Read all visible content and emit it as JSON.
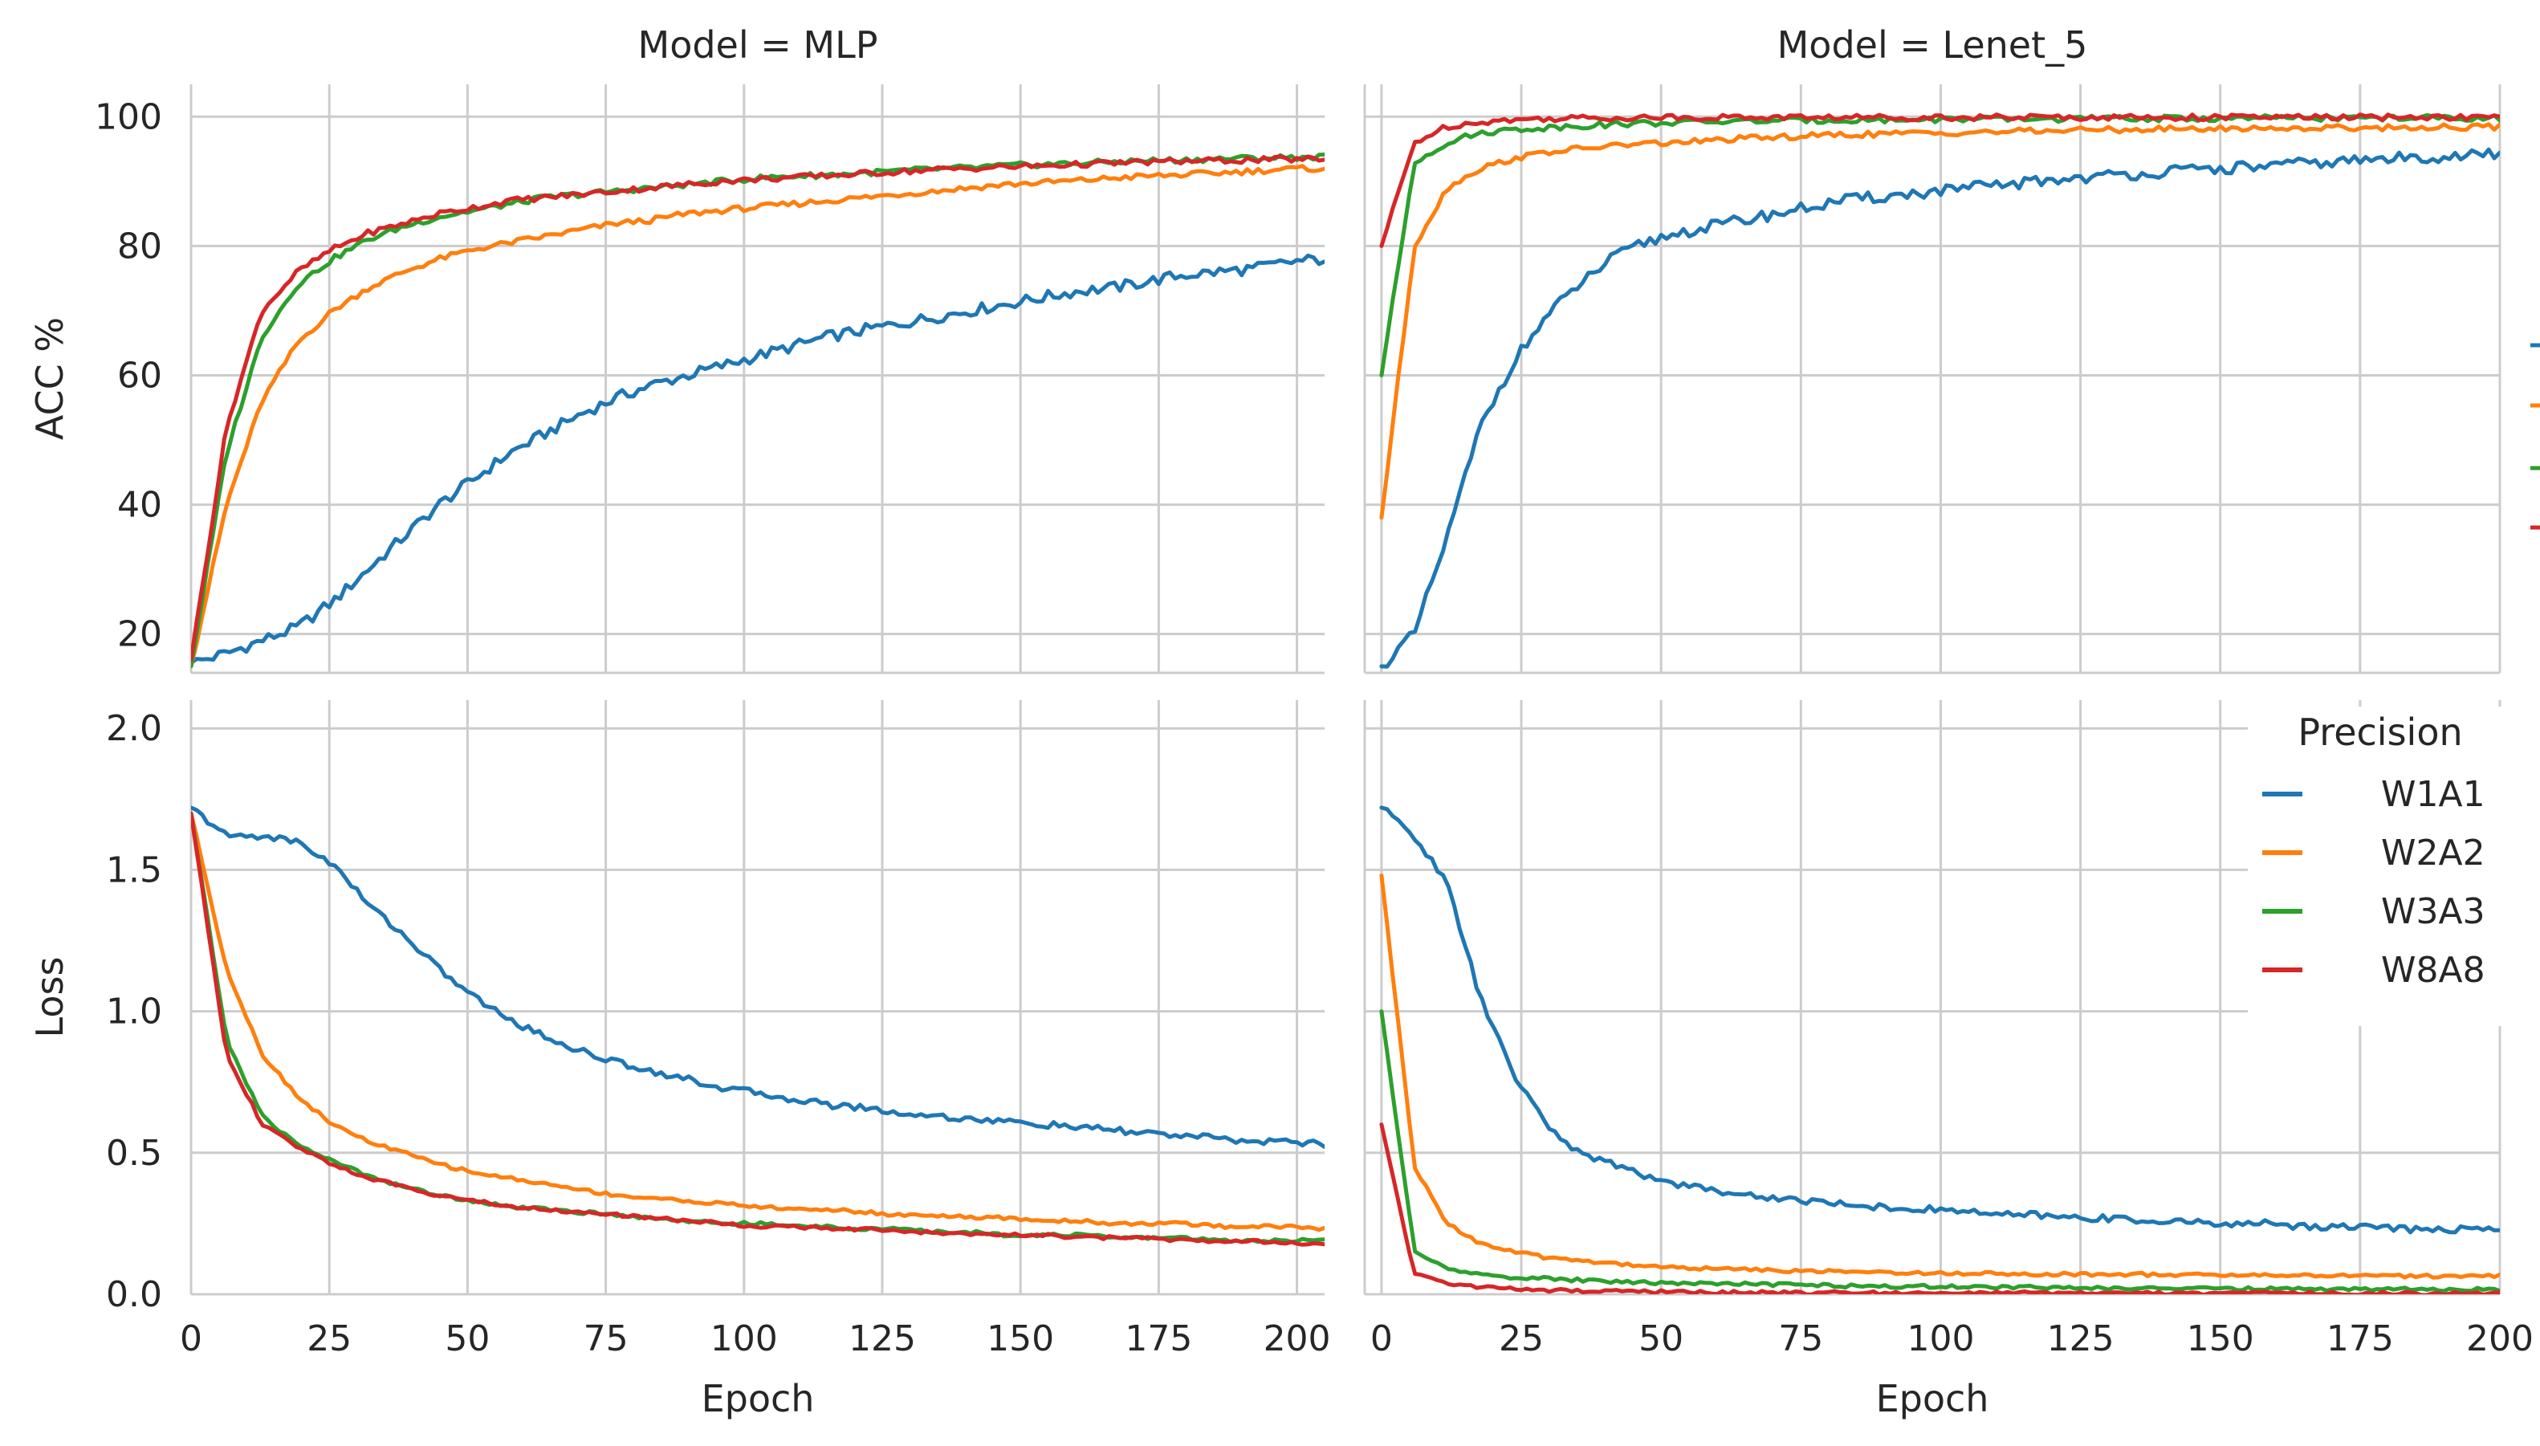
{
  "chart_data": {
    "type": "line",
    "legend_title": "Precision",
    "legend_placement": "bottom-right panel, top-right",
    "colors": {
      "W1A1": "#1f77b4",
      "W2A2": "#ff7f0e",
      "W3A3": "#2ca02c",
      "W8A8": "#d62728"
    },
    "series_names": [
      "W1A1",
      "W2A2",
      "W3A3",
      "W8A8"
    ],
    "columns": [
      {
        "title": "Model = MLP",
        "xlabel": "Epoch",
        "xlim": [
          0,
          205
        ],
        "xticks": [
          0,
          25,
          50,
          75,
          100,
          125,
          150,
          175,
          200
        ],
        "epochs": 205
      },
      {
        "title": "Model = Lenet_5",
        "xlabel": "Epoch",
        "xlim": [
          -3,
          200
        ],
        "xticks": [
          0,
          25,
          50,
          75,
          100,
          125,
          150,
          175,
          200
        ],
        "epochs": 200
      }
    ],
    "rows": [
      {
        "ylabel": "ACC %",
        "ylim": [
          14,
          105
        ],
        "yticks": [
          20,
          40,
          60,
          80,
          100
        ]
      },
      {
        "ylabel": "Loss",
        "ylim": [
          0,
          2.1
        ],
        "yticks": [
          0.0,
          0.5,
          1.0,
          1.5,
          2.0
        ]
      }
    ],
    "panels": [
      {
        "model": "MLP",
        "metric": "ACC %",
        "series": [
          {
            "name": "W1A1",
            "values": [
              15.5,
              17,
              19,
              21,
              25,
              30,
              35,
              40,
              44,
              48,
              51,
              54,
              56.5,
              58.5,
              60,
              61.5,
              63,
              64.5,
              66,
              67,
              68,
              69,
              70,
              71,
              72,
              73,
              73.5,
              74.5,
              75.5,
              76,
              76.5,
              77.5,
              78
            ]
          },
          {
            "name": "W2A2",
            "values": [
              15,
              40,
              56,
              65,
              70,
              73.5,
              76,
              78,
              79.5,
              80.5,
              81.5,
              82.5,
              83.5,
              84,
              85,
              85.5,
              86,
              86.5,
              87,
              87.5,
              88,
              88.5,
              89,
              89.5,
              89.8,
              90.1,
              90.5,
              90.8,
              91,
              91.3,
              91.6,
              91.9,
              92
            ]
          },
          {
            "name": "W3A3",
            "values": [
              15,
              48,
              66,
              74,
              78,
              81,
              83,
              84.5,
              85.5,
              86.5,
              87.5,
              88,
              88.5,
              89,
              89.5,
              90,
              90.5,
              90.8,
              91,
              91.3,
              91.6,
              91.9,
              92.1,
              92.4,
              92.6,
              92.8,
              93,
              93.2,
              93.3,
              93.5,
              93.6,
              93.7,
              93.8
            ]
          },
          {
            "name": "W8A8",
            "values": [
              16,
              52,
              70,
              76,
              79.5,
              82,
              83.5,
              85,
              86,
              87,
              87.5,
              88,
              88.5,
              89,
              89.5,
              90,
              90.3,
              90.6,
              90.9,
              91.2,
              91.5,
              91.8,
              92,
              92.2,
              92.4,
              92.6,
              92.8,
              93,
              93.1,
              93.2,
              93.3,
              93.4,
              93.5
            ]
          }
        ]
      },
      {
        "model": "Lenet_5",
        "metric": "ACC %",
        "series": [
          {
            "name": "W1A1",
            "values": [
              15,
              20,
              35,
              52,
              62,
              69,
              74,
              78,
              80.5,
              82,
              83,
              84,
              85,
              86,
              87,
              87.5,
              88,
              88.5,
              89,
              89.5,
              90,
              90.5,
              90.8,
              91.2,
              91.5,
              91.8,
              92.1,
              92.4,
              92.7,
              93,
              93.3,
              93.6,
              93.8,
              94,
              94.2
            ]
          },
          {
            "name": "W2A2",
            "values": [
              38,
              80,
              89,
              92,
              93.5,
              94.5,
              95,
              95.5,
              95.8,
              96,
              96.3,
              96.6,
              96.8,
              97,
              97.2,
              97.3,
              97.4,
              97.5,
              97.6,
              97.7,
              97.8,
              97.9,
              98,
              98,
              98.1,
              98.1,
              98.2,
              98.2,
              98.2,
              98.3,
              98.3,
              98.3,
              98.4,
              98.4,
              98.4
            ]
          },
          {
            "name": "W3A3",
            "values": [
              60,
              93,
              96,
              97.5,
              98,
              98.3,
              98.6,
              98.8,
              99,
              99.1,
              99.2,
              99.3,
              99.4,
              99.4,
              99.5,
              99.5,
              99.5,
              99.6,
              99.6,
              99.6,
              99.6,
              99.7,
              99.7,
              99.7,
              99.7,
              99.7,
              99.7,
              99.8,
              99.8,
              99.8,
              99.8,
              99.8,
              99.8,
              99.8,
              99.8
            ]
          },
          {
            "name": "W8A8",
            "values": [
              80,
              96,
              98.5,
              99.2,
              99.5,
              99.7,
              99.8,
              99.8,
              99.9,
              99.9,
              99.9,
              99.9,
              99.9,
              99.9,
              99.9,
              99.9,
              99.9,
              99.9,
              99.9,
              99.9,
              99.9,
              99.9,
              99.9,
              99.9,
              99.9,
              99.9,
              99.9,
              99.9,
              99.9,
              99.9,
              99.9,
              99.9,
              99.9,
              99.9,
              99.9
            ]
          }
        ]
      },
      {
        "model": "MLP",
        "metric": "Loss",
        "series": [
          {
            "name": "W1A1",
            "values": [
              1.72,
              1.62,
              1.62,
              1.6,
              1.52,
              1.38,
              1.27,
              1.15,
              1.05,
              0.97,
              0.91,
              0.86,
              0.82,
              0.79,
              0.76,
              0.73,
              0.71,
              0.69,
              0.67,
              0.66,
              0.64,
              0.63,
              0.62,
              0.61,
              0.6,
              0.59,
              0.58,
              0.57,
              0.56,
              0.55,
              0.54,
              0.54,
              0.53
            ]
          },
          {
            "name": "W2A2",
            "values": [
              1.7,
              1.15,
              0.85,
              0.7,
              0.6,
              0.54,
              0.5,
              0.46,
              0.43,
              0.41,
              0.39,
              0.37,
              0.35,
              0.34,
              0.33,
              0.32,
              0.31,
              0.3,
              0.3,
              0.29,
              0.28,
              0.28,
              0.27,
              0.27,
              0.26,
              0.26,
              0.25,
              0.25,
              0.25,
              0.24,
              0.24,
              0.24,
              0.23
            ]
          },
          {
            "name": "W3A3",
            "values": [
              1.7,
              0.9,
              0.63,
              0.53,
              0.47,
              0.42,
              0.38,
              0.35,
              0.33,
              0.31,
              0.3,
              0.29,
              0.28,
              0.27,
              0.26,
              0.25,
              0.25,
              0.24,
              0.24,
              0.23,
              0.23,
              0.22,
              0.22,
              0.21,
              0.21,
              0.21,
              0.2,
              0.2,
              0.2,
              0.19,
              0.19,
              0.19,
              0.19
            ]
          },
          {
            "name": "W8A8",
            "values": [
              1.7,
              0.85,
              0.6,
              0.52,
              0.46,
              0.41,
              0.38,
              0.35,
              0.33,
              0.31,
              0.3,
              0.29,
              0.28,
              0.27,
              0.26,
              0.25,
              0.24,
              0.24,
              0.23,
              0.23,
              0.22,
              0.22,
              0.21,
              0.21,
              0.21,
              0.2,
              0.2,
              0.2,
              0.19,
              0.19,
              0.19,
              0.18,
              0.18
            ]
          }
        ]
      },
      {
        "model": "Lenet_5",
        "metric": "Loss",
        "series": [
          {
            "name": "W1A1",
            "values": [
              1.72,
              1.62,
              1.45,
              1.05,
              0.78,
              0.6,
              0.5,
              0.46,
              0.42,
              0.39,
              0.37,
              0.35,
              0.34,
              0.33,
              0.32,
              0.31,
              0.3,
              0.3,
              0.29,
              0.28,
              0.28,
              0.27,
              0.27,
              0.26,
              0.26,
              0.25,
              0.25,
              0.25,
              0.24,
              0.24,
              0.24,
              0.23,
              0.23,
              0.23,
              0.23
            ]
          },
          {
            "name": "W2A2",
            "values": [
              1.48,
              0.45,
              0.25,
              0.18,
              0.15,
              0.13,
              0.12,
              0.11,
              0.1,
              0.095,
              0.09,
              0.088,
              0.085,
              0.082,
              0.08,
              0.078,
              0.076,
              0.075,
              0.074,
              0.073,
              0.072,
              0.071,
              0.07,
              0.07,
              0.069,
              0.068,
              0.068,
              0.067,
              0.067,
              0.066,
              0.066,
              0.065,
              0.065,
              0.065,
              0.065
            ]
          },
          {
            "name": "W3A3",
            "values": [
              1.0,
              0.15,
              0.09,
              0.07,
              0.06,
              0.055,
              0.05,
              0.045,
              0.042,
              0.04,
              0.038,
              0.036,
              0.034,
              0.032,
              0.03,
              0.029,
              0.028,
              0.027,
              0.026,
              0.025,
              0.024,
              0.023,
              0.022,
              0.021,
              0.021,
              0.02,
              0.02,
              0.019,
              0.019,
              0.018,
              0.018,
              0.018,
              0.017,
              0.017,
              0.017
            ]
          },
          {
            "name": "W8A8",
            "values": [
              0.6,
              0.07,
              0.04,
              0.025,
              0.018,
              0.014,
              0.012,
              0.01,
              0.009,
              0.008,
              0.007,
              0.006,
              0.006,
              0.005,
              0.005,
              0.005,
              0.004,
              0.004,
              0.004,
              0.004,
              0.004,
              0.003,
              0.003,
              0.003,
              0.003,
              0.003,
              0.003,
              0.003,
              0.003,
              0.003,
              0.003,
              0.003,
              0.003,
              0.003,
              0.003
            ]
          }
        ]
      }
    ]
  }
}
